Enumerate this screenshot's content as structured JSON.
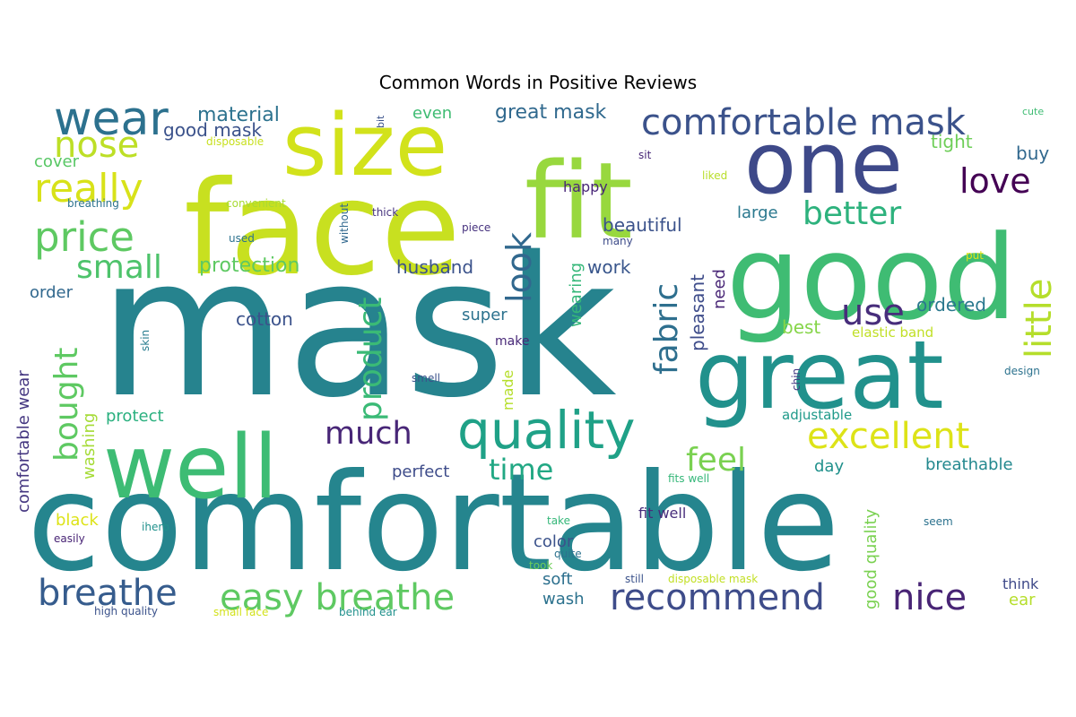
{
  "title": "Common Words in Positive Reviews",
  "words": [
    {
      "text": "mask",
      "color": "#26838e"
    },
    {
      "text": "comfortable",
      "color": "#25858e"
    },
    {
      "text": "face",
      "color": "#c8e020"
    },
    {
      "text": "good",
      "color": "#3fbc73"
    },
    {
      "text": "one",
      "color": "#3e4989"
    },
    {
      "text": "fit",
      "color": "#98d83e"
    },
    {
      "text": "size",
      "color": "#d2e21b"
    },
    {
      "text": "great",
      "color": "#21918c"
    },
    {
      "text": "well",
      "color": "#3dbc74"
    },
    {
      "text": "quality",
      "color": "#1fa187"
    },
    {
      "text": "wear",
      "color": "#2c718e"
    },
    {
      "text": "comfortable mask",
      "color": "#3b528b"
    },
    {
      "text": "recommend",
      "color": "#3e4c8a"
    },
    {
      "text": "easy breathe",
      "color": "#5ec962"
    },
    {
      "text": "breathe",
      "color": "#365c8d"
    },
    {
      "text": "nice",
      "color": "#482475"
    },
    {
      "text": "price",
      "color": "#5ec962"
    },
    {
      "text": "really",
      "color": "#d8e219"
    },
    {
      "text": "nose",
      "color": "#bddf26"
    },
    {
      "text": "excellent",
      "color": "#dde318"
    },
    {
      "text": "love",
      "color": "#440154"
    },
    {
      "text": "better",
      "color": "#2db27d"
    },
    {
      "text": "use",
      "color": "#472d7b"
    },
    {
      "text": "little",
      "color": "#b5de2b"
    },
    {
      "text": "look",
      "color": "#31688e"
    },
    {
      "text": "product",
      "color": "#3aba76"
    },
    {
      "text": "fabric",
      "color": "#2e6f8e"
    },
    {
      "text": "bought",
      "color": "#5ec962"
    },
    {
      "text": "small",
      "color": "#4ec36b"
    },
    {
      "text": "much",
      "color": "#482677"
    },
    {
      "text": "feel",
      "color": "#7ad151"
    },
    {
      "text": "time",
      "color": "#22a884"
    },
    {
      "text": "material",
      "color": "#2c728e"
    },
    {
      "text": "good mask",
      "color": "#3b528b"
    },
    {
      "text": "great mask",
      "color": "#30698e"
    },
    {
      "text": "even",
      "color": "#3fbc73"
    },
    {
      "text": "tight",
      "color": "#6ece58"
    },
    {
      "text": "buy",
      "color": "#31688e"
    },
    {
      "text": "cover",
      "color": "#58c765"
    },
    {
      "text": "protection",
      "color": "#5ec962"
    },
    {
      "text": "husband",
      "color": "#3b528b"
    },
    {
      "text": "work",
      "color": "#39568c"
    },
    {
      "text": "beautiful",
      "color": "#3b528b"
    },
    {
      "text": "large",
      "color": "#2a788e"
    },
    {
      "text": "happy",
      "color": "#482677"
    },
    {
      "text": "cotton",
      "color": "#3b528b"
    },
    {
      "text": "super",
      "color": "#2c728e"
    },
    {
      "text": "order",
      "color": "#31688e"
    },
    {
      "text": "ordered",
      "color": "#2a788e"
    },
    {
      "text": "best",
      "color": "#86d549"
    },
    {
      "text": "pleasant",
      "color": "#3e4c8a"
    },
    {
      "text": "need",
      "color": "#482576"
    },
    {
      "text": "wearing",
      "color": "#35b779"
    },
    {
      "text": "comfortable wear",
      "color": "#453781"
    },
    {
      "text": "washing",
      "color": "#a5db36"
    },
    {
      "text": "protect",
      "color": "#2ab07f"
    },
    {
      "text": "perfect",
      "color": "#3e4c8a"
    },
    {
      "text": "day",
      "color": "#21918c"
    },
    {
      "text": "good quality",
      "color": "#7ad151"
    },
    {
      "text": "breathable",
      "color": "#23888e"
    },
    {
      "text": "adjustable",
      "color": "#1f9a8a"
    },
    {
      "text": "elastic band",
      "color": "#c0df25"
    },
    {
      "text": "black",
      "color": "#dde318"
    },
    {
      "text": "color",
      "color": "#3b528b"
    },
    {
      "text": "soft",
      "color": "#2d708e"
    },
    {
      "text": "wash",
      "color": "#2c728e"
    },
    {
      "text": "fit well",
      "color": "#472d7b"
    },
    {
      "text": "made",
      "color": "#b5de2b"
    },
    {
      "text": "make",
      "color": "#482878"
    },
    {
      "text": "think",
      "color": "#3e4989"
    },
    {
      "text": "ear",
      "color": "#b5de2b"
    },
    {
      "text": "design",
      "color": "#2c728e"
    },
    {
      "text": "cute",
      "color": "#3fbc73"
    },
    {
      "text": "disposable",
      "color": "#c8e020"
    },
    {
      "text": "bit",
      "color": "#3b528b"
    },
    {
      "text": "sit",
      "color": "#482777"
    },
    {
      "text": "liked",
      "color": "#b8de29"
    },
    {
      "text": "breathing",
      "color": "#2c728e"
    },
    {
      "text": "convenient",
      "color": "#a8db34"
    },
    {
      "text": "thick",
      "color": "#46337e"
    },
    {
      "text": "without",
      "color": "#31688e"
    },
    {
      "text": "used",
      "color": "#2c728e"
    },
    {
      "text": "piece",
      "color": "#46327e"
    },
    {
      "text": "many",
      "color": "#3e4c8a"
    },
    {
      "text": "put",
      "color": "#dde318"
    },
    {
      "text": "skin",
      "color": "#287c8e"
    },
    {
      "text": "smell",
      "color": "#3b528b"
    },
    {
      "text": "chin",
      "color": "#443a83"
    },
    {
      "text": "fits well",
      "color": "#35b779"
    },
    {
      "text": "seem",
      "color": "#2c728e"
    },
    {
      "text": "iherb",
      "color": "#21918c"
    },
    {
      "text": "easily",
      "color": "#482475"
    },
    {
      "text": "take",
      "color": "#35b779"
    },
    {
      "text": "quite",
      "color": "#2c728e"
    },
    {
      "text": "took",
      "color": "#6ece58"
    },
    {
      "text": "still",
      "color": "#3b528b"
    },
    {
      "text": "disposable mask",
      "color": "#c2df23"
    },
    {
      "text": "high quality",
      "color": "#3b528b"
    },
    {
      "text": "small face",
      "color": "#d2e21b"
    },
    {
      "text": "behind ear",
      "color": "#21918c"
    }
  ]
}
